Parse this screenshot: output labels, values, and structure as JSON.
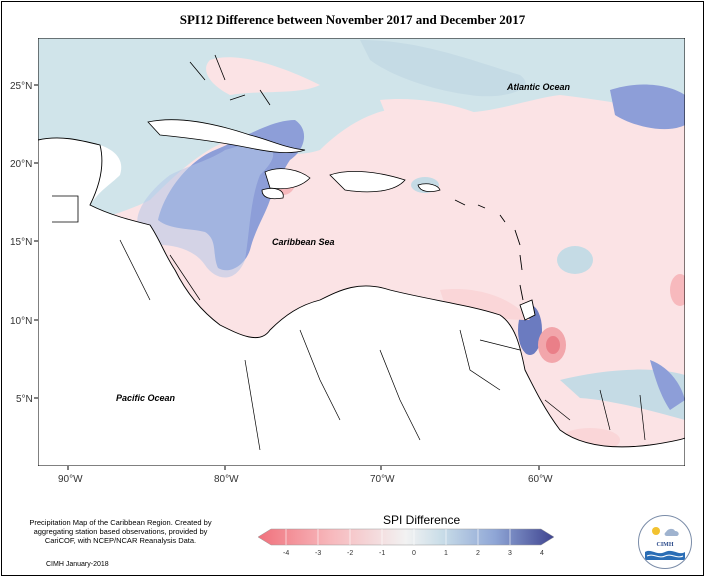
{
  "title": "SPI12 Difference between November 2017 and December 2017",
  "axes": {
    "lat_labels": [
      "25°N",
      "20°N",
      "15°N",
      "10°N",
      "5°N"
    ],
    "lon_labels": [
      "90°W",
      "80°W",
      "70°W",
      "60°W"
    ]
  },
  "places": {
    "atlantic": "Atlantic Ocean",
    "caribbean": "Caribbean Sea",
    "pacific": "Pacific Ocean"
  },
  "credit": {
    "text": "Precipitation Map of the Caribbean Region. Created by aggregating station based observations, provided by CariCOF, with NCEP/NCAR Reanalysis Data.",
    "date": "CIMH January-2018"
  },
  "legend": {
    "title": "SPI Difference",
    "ticks": [
      "-4",
      "-3",
      "-2",
      "-1",
      "0",
      "1",
      "2",
      "3",
      "4"
    ],
    "colors": [
      "#f49aa0",
      "#f7b9bd",
      "#fad6d8",
      "#fde9ea",
      "#d5e7ec",
      "#b5cde8",
      "#8fa6d6",
      "#6b7bc0",
      "#4a4f9a"
    ]
  },
  "logo": {
    "text": "CIMH"
  },
  "colors": {
    "land": "#ffffff",
    "positive_field": "#fbe3e5",
    "negative_field": "#d0e4ea",
    "strong_negative": "#8d9ed8",
    "strong_positive": "#f2a6ab"
  }
}
